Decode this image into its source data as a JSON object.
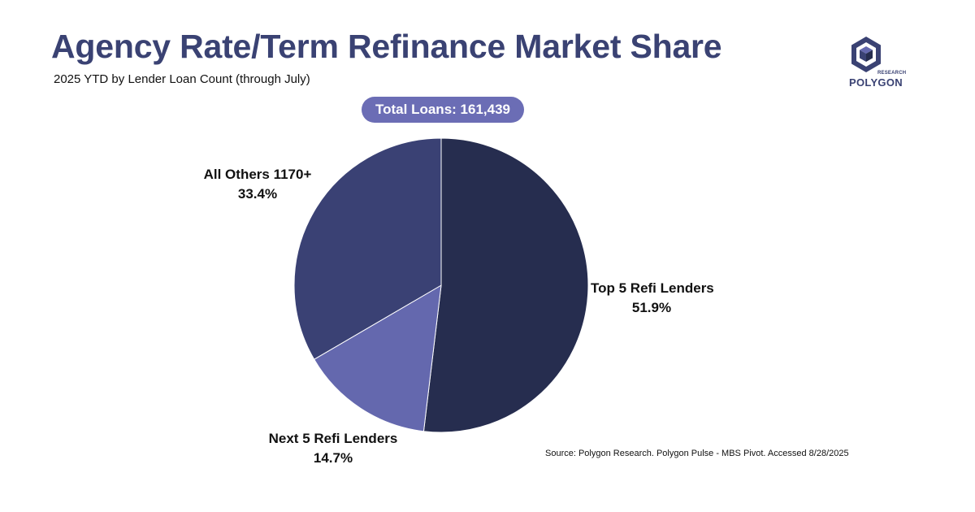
{
  "header": {
    "title": "Agency Rate/Term Refinance Market Share",
    "subtitle": "2025 YTD by Lender Loan Count (through July)"
  },
  "badge": {
    "total_label": "Total Loans: 161,439"
  },
  "logo": {
    "small_text": "RESEARCH",
    "word": "POLYGON"
  },
  "footer": {
    "source": "Source: Polygon Research. Polygon Pulse - MBS Pivot. Accessed 8/28/2025"
  },
  "chart_data": {
    "type": "pie",
    "title": "Agency Rate/Term Refinance Market Share",
    "subtitle": "2025 YTD by Lender Loan Count (through July)",
    "total": 161439,
    "slices": [
      {
        "label": "Top 5 Refi Lenders",
        "value": 51.9,
        "value_label": "51.9%",
        "color": "#262d4f"
      },
      {
        "label": "Next 5 Refi Lenders",
        "value": 14.7,
        "value_label": "14.7%",
        "color": "#6468ae"
      },
      {
        "label": "All Others 1170+",
        "value": 33.4,
        "value_label": "33.4%",
        "color": "#3a4174"
      }
    ],
    "start_angle": "12 o'clock",
    "direction": "clockwise"
  }
}
